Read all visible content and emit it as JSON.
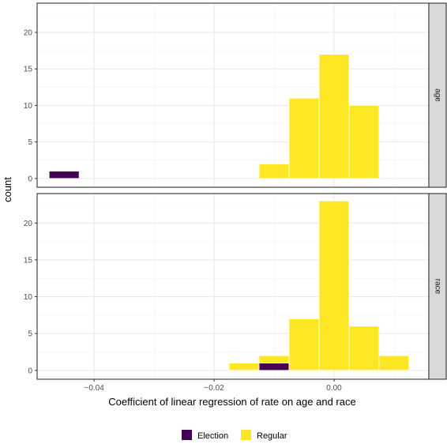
{
  "chart_data": {
    "type": "bar",
    "xlabel": "Coefficient of linear regression of rate on age and race",
    "ylabel": "count",
    "xlim": [
      -0.0495,
      0.0158
    ],
    "x_ticks": [
      -0.04,
      -0.02,
      0.0
    ],
    "x_tick_labels": [
      "−0.04",
      "−0.02",
      "0.00"
    ],
    "bin_width": 0.005,
    "legend": {
      "placement": "bottom",
      "entries": [
        "Election",
        "Regular"
      ]
    },
    "colors": {
      "Election": "#440154",
      "Regular": "#FDE725"
    },
    "stacked": true,
    "grid": true,
    "panels": [
      {
        "strip_label": "age",
        "ylim": [
          -1.2,
          24
        ],
        "y_ticks": [
          0,
          5,
          10,
          15,
          20
        ],
        "y_tick_labels": [
          "0",
          "5",
          "10",
          "15",
          "20"
        ],
        "bins": [
          {
            "x": -0.045,
            "Election": 1,
            "Regular": 0
          },
          {
            "x": -0.01,
            "Election": 0,
            "Regular": 2
          },
          {
            "x": -0.005,
            "Election": 0,
            "Regular": 11
          },
          {
            "x": 0.0,
            "Election": 0,
            "Regular": 17
          },
          {
            "x": 0.005,
            "Election": 0,
            "Regular": 10
          }
        ]
      },
      {
        "strip_label": "race",
        "ylim": [
          -1.2,
          24
        ],
        "y_ticks": [
          0,
          5,
          10,
          15,
          20
        ],
        "y_tick_labels": [
          "0",
          "5",
          "10",
          "15",
          "20"
        ],
        "bins": [
          {
            "x": -0.015,
            "Election": 0,
            "Regular": 1
          },
          {
            "x": -0.01,
            "Election": 1,
            "Regular": 1
          },
          {
            "x": -0.005,
            "Election": 0,
            "Regular": 7
          },
          {
            "x": 0.0,
            "Election": 0,
            "Regular": 23
          },
          {
            "x": 0.005,
            "Election": 0,
            "Regular": 6
          },
          {
            "x": 0.01,
            "Election": 0,
            "Regular": 2
          }
        ]
      }
    ]
  }
}
